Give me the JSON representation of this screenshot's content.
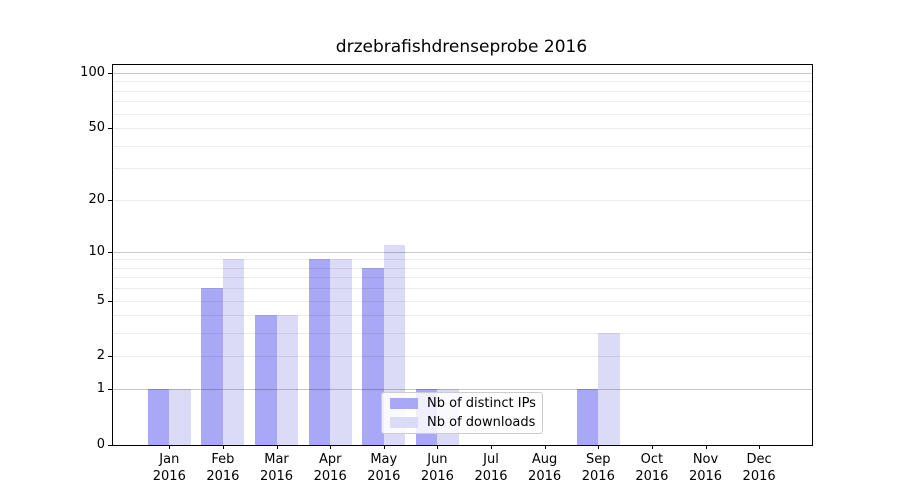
{
  "title": "drzebrafishdrenseprobe 2016",
  "chart_data": {
    "type": "bar",
    "title": "drzebrafishdrenseprobe 2016",
    "categories": [
      "Jan 2016",
      "Feb 2016",
      "Mar 2016",
      "Apr 2016",
      "May 2016",
      "Jun 2016",
      "Jul 2016",
      "Aug 2016",
      "Sep 2016",
      "Oct 2016",
      "Nov 2016",
      "Dec 2016"
    ],
    "series": [
      {
        "name": "Nb of distinct IPs",
        "color": "#a8a8f7",
        "values": [
          1,
          6,
          4,
          9,
          8,
          1,
          0,
          0,
          1,
          0,
          0,
          0
        ]
      },
      {
        "name": "Nb of downloads",
        "color": "#dbdbf8",
        "values": [
          1,
          9,
          4,
          9,
          11,
          1,
          0,
          0,
          3,
          0,
          0,
          0
        ]
      }
    ],
    "xlabel": "",
    "ylabel": "",
    "yscale": "log1p",
    "ylim": [
      0,
      115
    ],
    "yticks": [
      0,
      1,
      2,
      5,
      10,
      20,
      50,
      100
    ],
    "major_gridlines": [
      1,
      10,
      100
    ],
    "minor_gridlines": [
      2,
      3,
      4,
      5,
      6,
      7,
      8,
      9,
      20,
      30,
      40,
      50,
      60,
      70,
      80,
      90
    ],
    "grid": true,
    "legend_position": "inside-lower-center"
  }
}
